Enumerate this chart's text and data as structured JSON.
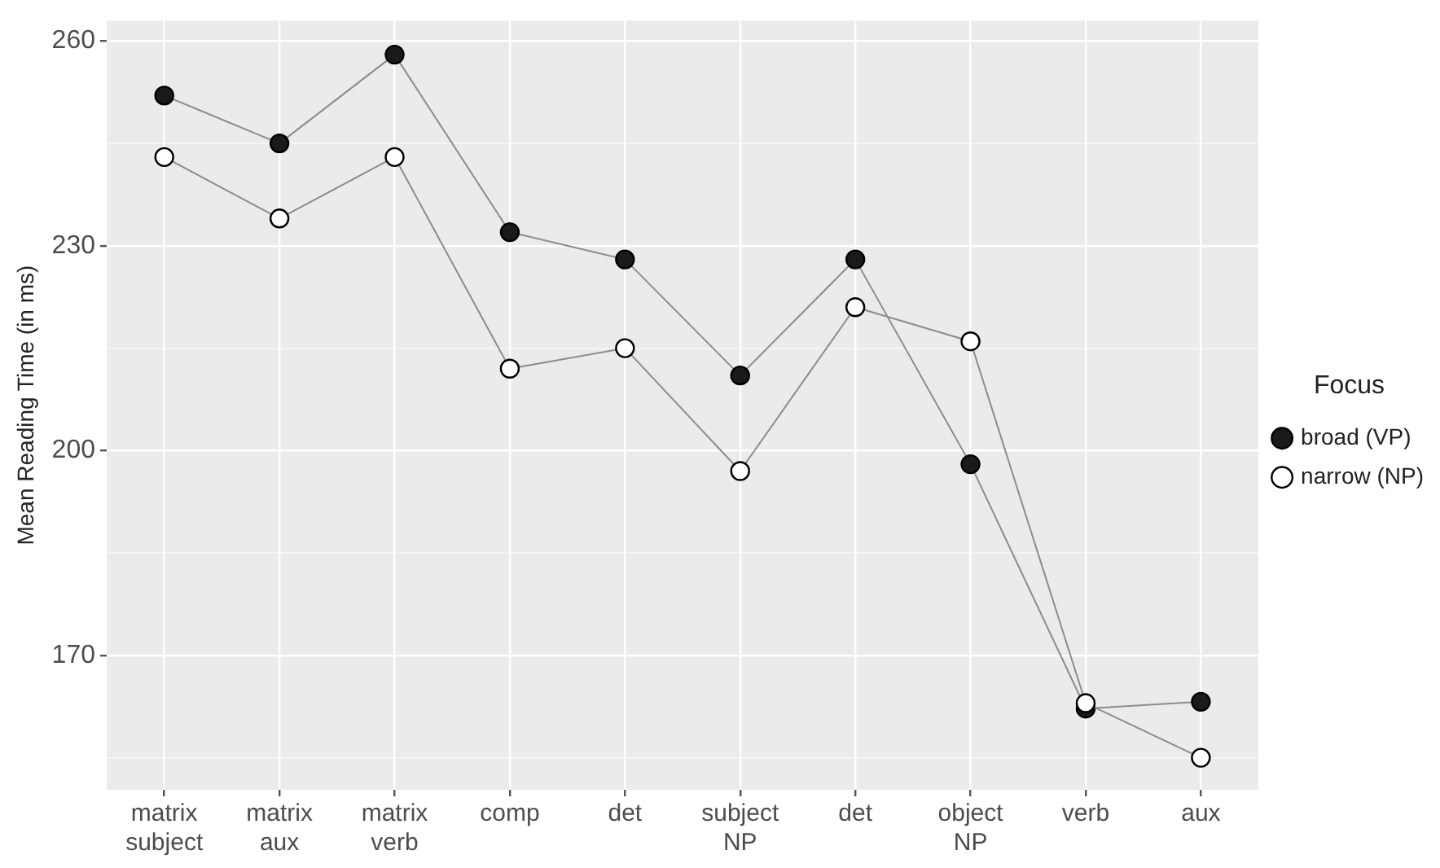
{
  "chart_data": {
    "type": "line",
    "ylabel": "Mean Reading Time (in ms)",
    "legend_title": "Focus",
    "legend": "right",
    "marker": "circle",
    "line_style": "solid",
    "grid": true,
    "categories": [
      "matrix subject",
      "matrix aux",
      "matrix verb",
      "comp",
      "det",
      "subject NP",
      "det",
      "object NP",
      "verb",
      "aux"
    ],
    "ylim": [
      150.3,
      263
    ],
    "yticks": [
      {
        "value": 155,
        "label": null
      },
      170,
      {
        "value": 185,
        "label": null
      },
      200,
      {
        "value": 215,
        "label": null
      },
      230,
      {
        "value": 245,
        "label": null
      },
      260
    ],
    "series": [
      {
        "name": "broad (VP)",
        "color": "#1a1a1a",
        "values": [
          252,
          245,
          258,
          232,
          228,
          211,
          228,
          198,
          162.2,
          163.2
        ]
      },
      {
        "name": "narrow (NP)",
        "color": "#ffffff",
        "values": [
          243,
          234,
          243,
          212,
          215,
          197,
          221,
          216,
          163,
          155
        ]
      }
    ]
  }
}
